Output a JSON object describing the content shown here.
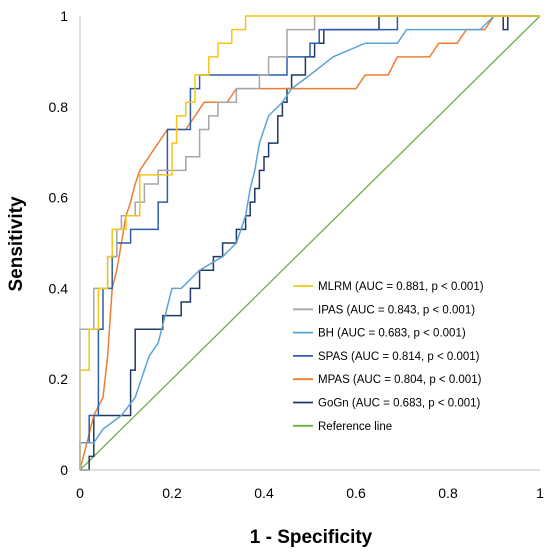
{
  "chart_data": {
    "type": "line",
    "title": "",
    "xlabel": "1 - Specificity",
    "ylabel": "Sensitivity",
    "xlim": [
      0,
      1
    ],
    "ylim": [
      0,
      1
    ],
    "x_ticks": [
      "0",
      "0.2",
      "0.4",
      "0.6",
      "0.8",
      "1"
    ],
    "y_ticks": [
      "0",
      "0.2",
      "0.4",
      "0.6",
      "0.8",
      "1"
    ],
    "grid": false,
    "legend_position": "bottom-right",
    "series": [
      {
        "name": "MLRM (AUC = 0.881, p < 0.001)",
        "color": "#F5C518",
        "points": [
          [
            0,
            0
          ],
          [
            0,
            0.22
          ],
          [
            0.02,
            0.22
          ],
          [
            0.02,
            0.31
          ],
          [
            0.04,
            0.31
          ],
          [
            0.04,
            0.4
          ],
          [
            0.06,
            0.4
          ],
          [
            0.06,
            0.47
          ],
          [
            0.07,
            0.47
          ],
          [
            0.07,
            0.53
          ],
          [
            0.1,
            0.53
          ],
          [
            0.1,
            0.56
          ],
          [
            0.13,
            0.56
          ],
          [
            0.13,
            0.65
          ],
          [
            0.2,
            0.65
          ],
          [
            0.2,
            0.72
          ],
          [
            0.21,
            0.72
          ],
          [
            0.21,
            0.78
          ],
          [
            0.23,
            0.78
          ],
          [
            0.23,
            0.81
          ],
          [
            0.25,
            0.81
          ],
          [
            0.25,
            0.87
          ],
          [
            0.28,
            0.87
          ],
          [
            0.28,
            0.91
          ],
          [
            0.3,
            0.91
          ],
          [
            0.3,
            0.94
          ],
          [
            0.33,
            0.94
          ],
          [
            0.33,
            0.97
          ],
          [
            0.36,
            0.97
          ],
          [
            0.36,
            1
          ],
          [
            0.58,
            1
          ],
          [
            1,
            1
          ]
        ]
      },
      {
        "name": "IPAS (AUC = 0.843, p < 0.001)",
        "color": "#A6A6A6",
        "points": [
          [
            0,
            0
          ],
          [
            0,
            0.31
          ],
          [
            0.03,
            0.31
          ],
          [
            0.03,
            0.4
          ],
          [
            0.06,
            0.4
          ],
          [
            0.06,
            0.47
          ],
          [
            0.08,
            0.47
          ],
          [
            0.08,
            0.53
          ],
          [
            0.09,
            0.53
          ],
          [
            0.09,
            0.56
          ],
          [
            0.12,
            0.56
          ],
          [
            0.12,
            0.59
          ],
          [
            0.14,
            0.59
          ],
          [
            0.14,
            0.63
          ],
          [
            0.17,
            0.63
          ],
          [
            0.17,
            0.66
          ],
          [
            0.23,
            0.66
          ],
          [
            0.23,
            0.69
          ],
          [
            0.26,
            0.69
          ],
          [
            0.26,
            0.75
          ],
          [
            0.28,
            0.75
          ],
          [
            0.28,
            0.78
          ],
          [
            0.3,
            0.78
          ],
          [
            0.3,
            0.81
          ],
          [
            0.34,
            0.81
          ],
          [
            0.34,
            0.84
          ],
          [
            0.39,
            0.84
          ],
          [
            0.39,
            0.87
          ],
          [
            0.41,
            0.87
          ],
          [
            0.41,
            0.91
          ],
          [
            0.45,
            0.91
          ],
          [
            0.45,
            0.97
          ],
          [
            0.51,
            0.97
          ],
          [
            0.51,
            1
          ],
          [
            1,
            1
          ]
        ]
      },
      {
        "name": "BH (AUC = 0.683, p < 0.001)",
        "color": "#5BA3D6",
        "points": [
          [
            0,
            0
          ],
          [
            0,
            0.06
          ],
          [
            0.03,
            0.06
          ],
          [
            0.05,
            0.09
          ],
          [
            0.09,
            0.12
          ],
          [
            0.12,
            0.16
          ],
          [
            0.15,
            0.25
          ],
          [
            0.17,
            0.28
          ],
          [
            0.2,
            0.4
          ],
          [
            0.22,
            0.4
          ],
          [
            0.26,
            0.44
          ],
          [
            0.31,
            0.47
          ],
          [
            0.34,
            0.5
          ],
          [
            0.36,
            0.56
          ],
          [
            0.37,
            0.62
          ],
          [
            0.38,
            0.66
          ],
          [
            0.39,
            0.72
          ],
          [
            0.4,
            0.75
          ],
          [
            0.41,
            0.78
          ],
          [
            0.44,
            0.81
          ],
          [
            0.46,
            0.84
          ],
          [
            0.5,
            0.87
          ],
          [
            0.55,
            0.91
          ],
          [
            0.62,
            0.94
          ],
          [
            0.69,
            0.94
          ],
          [
            0.71,
            0.97
          ],
          [
            0.87,
            0.97
          ],
          [
            0.9,
            1
          ],
          [
            1,
            1
          ]
        ]
      },
      {
        "name": "SPAS (AUC = 0.814, p < 0.001)",
        "color": "#2E5EAA",
        "points": [
          [
            0,
            0
          ],
          [
            0,
            0.06
          ],
          [
            0.02,
            0.06
          ],
          [
            0.02,
            0.12
          ],
          [
            0.04,
            0.12
          ],
          [
            0.04,
            0.31
          ],
          [
            0.05,
            0.31
          ],
          [
            0.05,
            0.4
          ],
          [
            0.07,
            0.4
          ],
          [
            0.07,
            0.47
          ],
          [
            0.08,
            0.47
          ],
          [
            0.08,
            0.5
          ],
          [
            0.11,
            0.5
          ],
          [
            0.11,
            0.53
          ],
          [
            0.17,
            0.53
          ],
          [
            0.17,
            0.59
          ],
          [
            0.19,
            0.59
          ],
          [
            0.19,
            0.75
          ],
          [
            0.24,
            0.75
          ],
          [
            0.24,
            0.84
          ],
          [
            0.26,
            0.84
          ],
          [
            0.26,
            0.87
          ],
          [
            0.45,
            0.87
          ],
          [
            0.45,
            0.91
          ],
          [
            0.5,
            0.91
          ],
          [
            0.5,
            0.94
          ],
          [
            0.52,
            0.94
          ],
          [
            0.52,
            0.97
          ],
          [
            0.69,
            0.97
          ],
          [
            0.69,
            1
          ],
          [
            1,
            1
          ]
        ]
      },
      {
        "name": "MPAS (AUC = 0.804, p < 0.001)",
        "color": "#ED7D31",
        "points": [
          [
            0,
            0
          ],
          [
            0.03,
            0.12
          ],
          [
            0.05,
            0.16
          ],
          [
            0.06,
            0.25
          ],
          [
            0.07,
            0.4
          ],
          [
            0.08,
            0.44
          ],
          [
            0.09,
            0.5
          ],
          [
            0.1,
            0.56
          ],
          [
            0.11,
            0.59
          ],
          [
            0.12,
            0.63
          ],
          [
            0.13,
            0.66
          ],
          [
            0.15,
            0.69
          ],
          [
            0.17,
            0.72
          ],
          [
            0.19,
            0.75
          ],
          [
            0.23,
            0.75
          ],
          [
            0.25,
            0.78
          ],
          [
            0.27,
            0.81
          ],
          [
            0.32,
            0.81
          ],
          [
            0.34,
            0.84
          ],
          [
            0.52,
            0.84
          ],
          [
            0.55,
            0.84
          ],
          [
            0.6,
            0.84
          ],
          [
            0.62,
            0.87
          ],
          [
            0.67,
            0.87
          ],
          [
            0.69,
            0.91
          ],
          [
            0.76,
            0.91
          ],
          [
            0.78,
            0.94
          ],
          [
            0.82,
            0.94
          ],
          [
            0.84,
            0.97
          ],
          [
            0.88,
            0.97
          ],
          [
            0.9,
            1
          ],
          [
            1,
            1
          ]
        ]
      },
      {
        "name": "GoGn (AUC = 0.683, p < 0.001)",
        "color": "#1F3864",
        "points": [
          [
            0,
            0
          ],
          [
            0.02,
            0
          ],
          [
            0.02,
            0.03
          ],
          [
            0.03,
            0.03
          ],
          [
            0.03,
            0.12
          ],
          [
            0.11,
            0.12
          ],
          [
            0.11,
            0.22
          ],
          [
            0.12,
            0.22
          ],
          [
            0.12,
            0.31
          ],
          [
            0.18,
            0.31
          ],
          [
            0.18,
            0.34
          ],
          [
            0.22,
            0.34
          ],
          [
            0.22,
            0.37
          ],
          [
            0.24,
            0.37
          ],
          [
            0.24,
            0.4
          ],
          [
            0.26,
            0.4
          ],
          [
            0.26,
            0.44
          ],
          [
            0.29,
            0.44
          ],
          [
            0.29,
            0.47
          ],
          [
            0.31,
            0.47
          ],
          [
            0.31,
            0.5
          ],
          [
            0.34,
            0.5
          ],
          [
            0.34,
            0.53
          ],
          [
            0.36,
            0.53
          ],
          [
            0.36,
            0.56
          ],
          [
            0.37,
            0.56
          ],
          [
            0.37,
            0.59
          ],
          [
            0.38,
            0.59
          ],
          [
            0.38,
            0.62
          ],
          [
            0.39,
            0.62
          ],
          [
            0.39,
            0.66
          ],
          [
            0.4,
            0.66
          ],
          [
            0.4,
            0.69
          ],
          [
            0.41,
            0.69
          ],
          [
            0.41,
            0.72
          ],
          [
            0.43,
            0.72
          ],
          [
            0.43,
            0.78
          ],
          [
            0.44,
            0.78
          ],
          [
            0.44,
            0.81
          ],
          [
            0.45,
            0.81
          ],
          [
            0.45,
            0.84
          ],
          [
            0.46,
            0.84
          ],
          [
            0.46,
            0.87
          ],
          [
            0.49,
            0.87
          ],
          [
            0.49,
            0.91
          ],
          [
            0.51,
            0.91
          ],
          [
            0.51,
            0.94
          ],
          [
            0.53,
            0.94
          ],
          [
            0.53,
            0.97
          ],
          [
            0.65,
            0.97
          ],
          [
            0.65,
            1
          ],
          [
            0.92,
            1
          ],
          [
            0.92,
            0.97
          ],
          [
            0.93,
            0.97
          ],
          [
            0.93,
            1
          ],
          [
            1,
            1
          ]
        ]
      },
      {
        "name": "Reference line",
        "color": "#70AD47",
        "points": [
          [
            0,
            0
          ],
          [
            1,
            1
          ]
        ]
      }
    ]
  }
}
